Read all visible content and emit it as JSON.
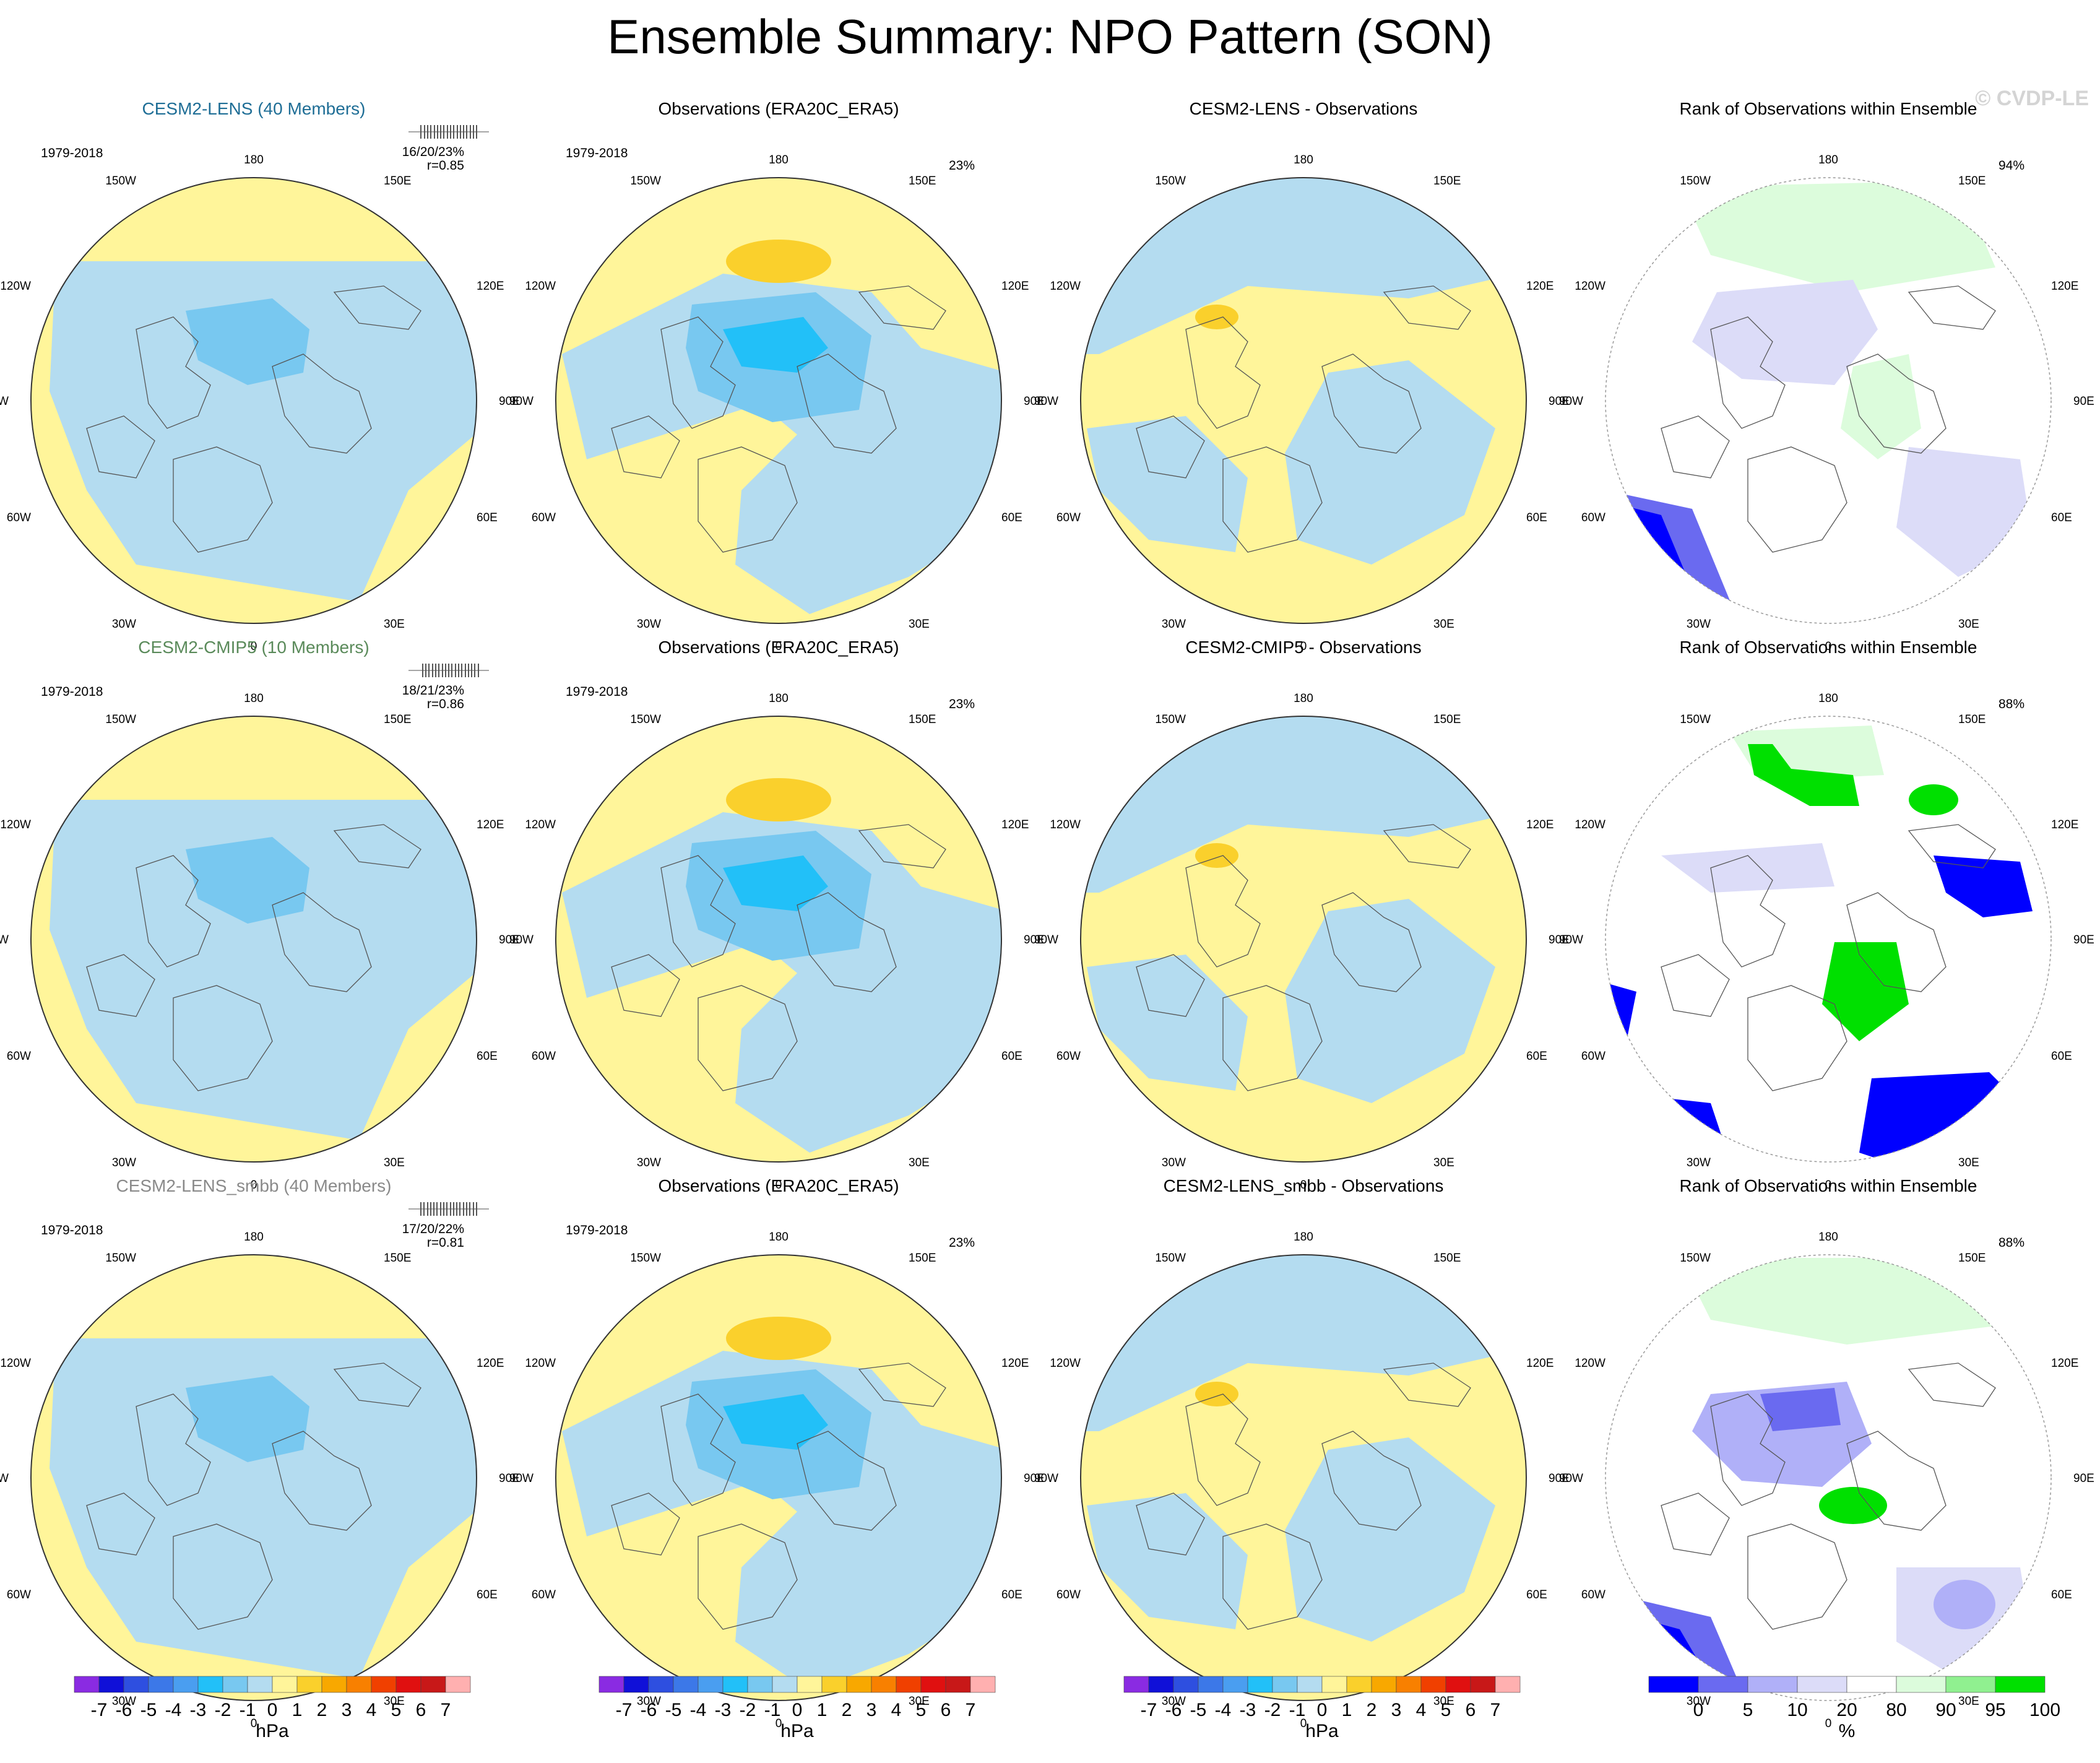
{
  "title": "Ensemble Summary: NPO Pattern (SON)",
  "watermark": "© CVDP-LE",
  "rows": [
    {
      "model": "CESM2-LENS (40 Members)",
      "model_color": "#1f6e96",
      "period": "1979-2018",
      "stats_line1": "16/20/23%",
      "stats_line2": "r=0.85",
      "obs_title": "Observations (ERA20C_ERA5)",
      "obs_pct": "23%",
      "diff_title": "CESM2-LENS - Observations",
      "rank_title": "Rank of Observations within Ensemble",
      "rank_pct": "94%"
    },
    {
      "model": "CESM2-CMIP5 (10 Members)",
      "model_color": "#5a8a5a",
      "period": "1979-2018",
      "stats_line1": "18/21/23%",
      "stats_line2": "r=0.86",
      "obs_title": "Observations (ERA20C_ERA5)",
      "obs_pct": "23%",
      "diff_title": "CESM2-CMIP5 - Observations",
      "rank_title": "Rank of Observations within Ensemble",
      "rank_pct": "88%"
    },
    {
      "model": "CESM2-LENS_smbb (40 Members)",
      "model_color": "#8a8a8a",
      "period": "1979-2018",
      "stats_line1": "17/20/22%",
      "stats_line2": "r=0.81",
      "obs_title": "Observations (ERA20C_ERA5)",
      "obs_pct": "23%",
      "diff_title": "CESM2-LENS_smbb - Observations",
      "rank_title": "Rank of Observations within Ensemble",
      "rank_pct": "88%"
    }
  ],
  "map_labels": {
    "top": "180",
    "bottom": "0",
    "upper_left": "150W",
    "upper_right": "150E",
    "mid_upper_left": "120W",
    "mid_upper_right": "120E",
    "left": "90W",
    "right": "90E",
    "mid_lower_left": "60W",
    "mid_lower_right": "60E",
    "lower_left": "30W",
    "lower_right": "30E"
  },
  "colorbar_hpa": {
    "unit": "hPa",
    "ticks": [
      "-7",
      "-6",
      "-5",
      "-4",
      "-3",
      "-2",
      "-1",
      "0",
      "1",
      "2",
      "3",
      "4",
      "5",
      "6",
      "7"
    ],
    "colors": [
      "#8a2be2",
      "#1010d8",
      "#2e4fe0",
      "#3c78e8",
      "#4a9ef0",
      "#22c0f8",
      "#78c8f0",
      "#b4dcf0",
      "#fff59a",
      "#fad02c",
      "#f8a800",
      "#f88000",
      "#f04000",
      "#e01010",
      "#c81818",
      "#ffb0b0"
    ]
  },
  "colorbar_pct": {
    "unit": "%",
    "ticks": [
      "0",
      "5",
      "10",
      "20",
      "80",
      "90",
      "95",
      "100"
    ],
    "colors": [
      "#0000ff",
      "#6a6af0",
      "#b0b0f8",
      "#dcdcf8",
      "#ffffff",
      "#dcfcdc",
      "#90f090",
      "#00e000"
    ]
  },
  "chart_data": {
    "type": "heatmap",
    "description_levels_hPa": [
      -7,
      -6,
      -5,
      -4,
      -3,
      -2,
      -1,
      0,
      1,
      2,
      3,
      4,
      5,
      6,
      7
    ],
    "rank_levels_pct": [
      0,
      5,
      10,
      20,
      80,
      90,
      95,
      100
    ],
    "panels_per_row": 4,
    "rows": 3
  }
}
